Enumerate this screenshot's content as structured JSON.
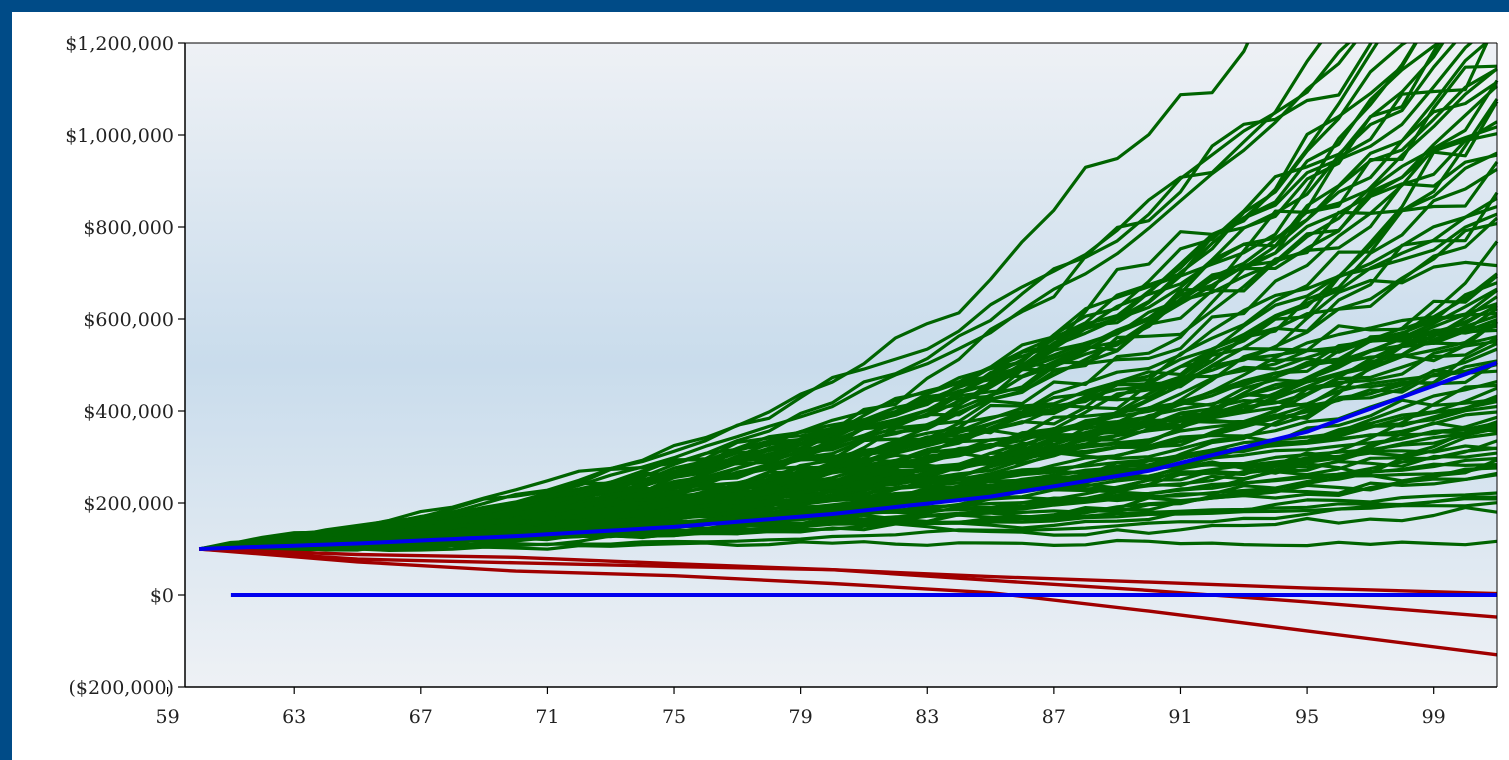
{
  "chart_data": {
    "type": "line",
    "title": "",
    "xlabel": "",
    "ylabel": "",
    "x_range": [
      59,
      101
    ],
    "ylim": [
      -200000,
      1200000
    ],
    "x_ticks": [
      59,
      63,
      67,
      71,
      75,
      79,
      83,
      87,
      91,
      95,
      99
    ],
    "x_tick_labels": [
      "59",
      "63",
      "67",
      "71",
      "75",
      "79",
      "83",
      "87",
      "91",
      "95",
      "99"
    ],
    "y_ticks": [
      -200000,
      0,
      200000,
      400000,
      600000,
      800000,
      1000000,
      1200000
    ],
    "y_tick_labels": [
      "($200,000)",
      "$0",
      "$200,000",
      "$400,000",
      "$600,000",
      "$800,000",
      "$1,000,000",
      "$1,200,000"
    ],
    "grid": false,
    "legend": "none",
    "simulations": {
      "count": 100,
      "start_age": 60,
      "end_age": 101,
      "start_value": 100000,
      "color_success": "#006400",
      "color_failure": "#a00000"
    },
    "series": [
      {
        "color": "#0000ee",
        "x": [
          60,
          65,
          70,
          75,
          80,
          85,
          90,
          95,
          101
        ],
        "y": [
          100000,
          112000,
          128000,
          148000,
          176000,
          214000,
          270000,
          355000,
          505000
        ]
      },
      {
        "color": "#0000ee",
        "x": [
          61,
          101
        ],
        "y": [
          0,
          0
        ]
      },
      {
        "color": "#a00000",
        "x": [
          60,
          65,
          70,
          75,
          80,
          85,
          90,
          95,
          101
        ],
        "y": [
          100000,
          78000,
          70000,
          62000,
          55000,
          40000,
          28000,
          15000,
          3000
        ]
      },
      {
        "color": "#a00000",
        "x": [
          60,
          65,
          70,
          75,
          80,
          85,
          90,
          95,
          101
        ],
        "y": [
          100000,
          88000,
          82000,
          68000,
          55000,
          32000,
          10000,
          -15000,
          -48000
        ]
      },
      {
        "color": "#a00000",
        "x": [
          60,
          65,
          70,
          75,
          80,
          85,
          90,
          95,
          101
        ],
        "y": [
          100000,
          72000,
          52000,
          42000,
          25000,
          5000,
          -35000,
          -78000,
          -130000
        ]
      }
    ]
  }
}
